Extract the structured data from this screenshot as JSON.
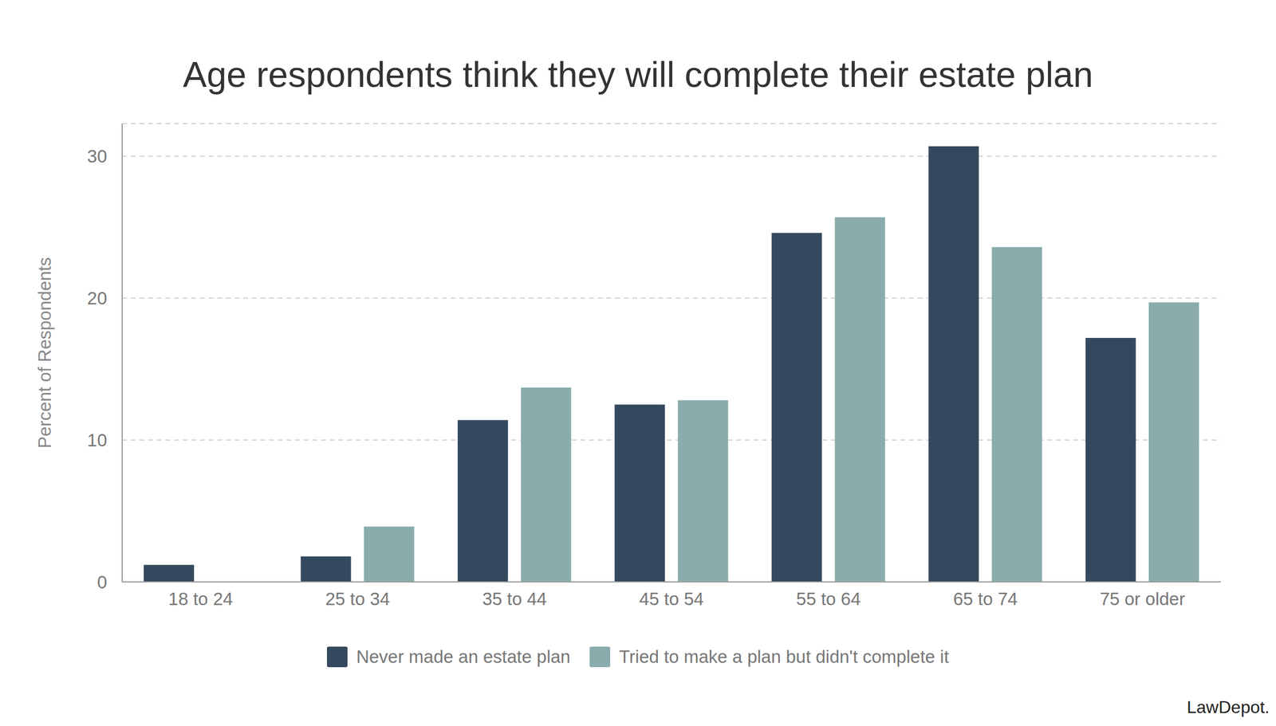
{
  "chart_data": {
    "type": "bar",
    "title": "Age respondents think they will complete their estate plan",
    "y_label": "Percent of Respondents",
    "categories": [
      "18 to 24",
      "25 to 34",
      "35 to 44",
      "45 to 54",
      "55 to 64",
      "65 to 74",
      "75 or older"
    ],
    "series": [
      {
        "name": "Never made an estate plan",
        "color": "#34495e",
        "values": [
          1.2,
          1.8,
          11.4,
          12.5,
          24.6,
          30.7,
          17.2
        ]
      },
      {
        "name": "Tried to make a plan but didn't complete it",
        "color": "#8aacac",
        "values": [
          0,
          3.9,
          13.7,
          12.8,
          25.7,
          23.6,
          19.7
        ]
      }
    ],
    "ylim": [
      0,
      32.3
    ],
    "yticks": [
      0,
      10,
      20,
      30
    ],
    "grid": true,
    "legend": "bottom",
    "annotations": [
      "LawDepot."
    ]
  }
}
